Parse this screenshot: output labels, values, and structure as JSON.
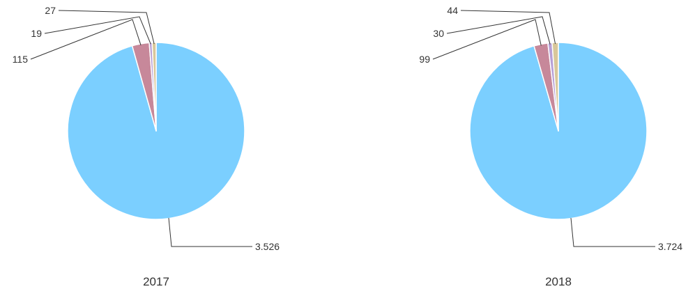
{
  "chart_data": [
    {
      "type": "pie",
      "title": "2017",
      "slices": [
        {
          "value": 3526,
          "label": "3.526",
          "color": "#7bcfff"
        },
        {
          "value": 115,
          "label": "115",
          "color": "#c7889a"
        },
        {
          "value": 19,
          "label": "19",
          "color": "#b7a0d6"
        },
        {
          "value": 27,
          "label": "27",
          "color": "#d8c79a"
        }
      ]
    },
    {
      "type": "pie",
      "title": "2018",
      "slices": [
        {
          "value": 3724,
          "label": "3.724",
          "color": "#7bcfff"
        },
        {
          "value": 99,
          "label": "99",
          "color": "#c7889a"
        },
        {
          "value": 30,
          "label": "30",
          "color": "#b7a0d6"
        },
        {
          "value": 44,
          "label": "44",
          "color": "#d8c79a"
        }
      ]
    }
  ]
}
